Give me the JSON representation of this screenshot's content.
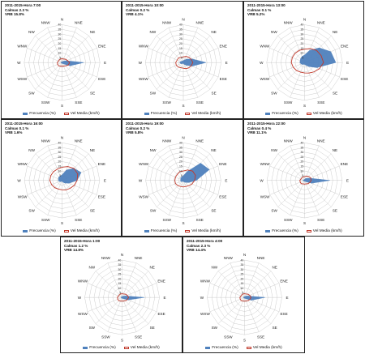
{
  "chart_data": [
    {
      "type": "radar",
      "title": "2011-2015-Hora 7:00",
      "calmas": "Calmas 2.3 %",
      "vrb": "VRB  15.8%",
      "categories": [
        "N",
        "NNE",
        "NE",
        "ENE",
        "E",
        "ESE",
        "SE",
        "SSE",
        "S",
        "SSW",
        "SW",
        "WSW",
        "W",
        "WNW",
        "NW",
        "NNW"
      ],
      "rlim": [
        0,
        40
      ],
      "ticks": [
        5,
        10,
        15,
        20,
        25,
        30,
        35,
        40
      ],
      "legend": [
        "Frecuencia (%)",
        "Vel Media (km/h)"
      ],
      "series": [
        {
          "name": "Frecuencia (%)",
          "values": [
            1,
            1,
            2,
            5,
            23,
            9,
            2,
            1,
            1,
            1,
            1,
            1,
            1,
            1,
            1,
            1
          ]
        },
        {
          "name": "Vel Media (km/h)",
          "values": [
            4,
            4,
            5,
            6,
            8,
            7,
            5,
            4,
            4,
            4,
            5,
            5,
            5,
            4,
            4,
            4
          ]
        }
      ]
    },
    {
      "type": "radar",
      "title": "2011-2015-Hora 10:00",
      "calmas": "Calmas 0.2 %",
      "vrb": "VRB  4.1%",
      "categories": [
        "N",
        "NNE",
        "NE",
        "ENE",
        "E",
        "ESE",
        "SE",
        "SSE",
        "S",
        "SSW",
        "SW",
        "WSW",
        "W",
        "WNW",
        "NW",
        "NNW"
      ],
      "rlim": [
        0,
        40
      ],
      "ticks": [
        5,
        10,
        15,
        20,
        25,
        30,
        35,
        40
      ],
      "legend": [
        "Frecuencia (%)",
        "Vel Media (km/h)"
      ],
      "series": [
        {
          "name": "Frecuencia (%)",
          "values": [
            2,
            3,
            5,
            10,
            24,
            10,
            4,
            2,
            1,
            1,
            2,
            3,
            4,
            3,
            2,
            2
          ]
        },
        {
          "name": "Vel Media (km/h)",
          "values": [
            6,
            7,
            8,
            9,
            10,
            9,
            8,
            7,
            6,
            6,
            7,
            8,
            8,
            7,
            7,
            6
          ]
        }
      ]
    },
    {
      "type": "radar",
      "title": "2011-2015-Hora 13:00",
      "calmas": "Calmas 0.1 %",
      "vrb": "VRB  5.2%",
      "categories": [
        "N",
        "NNE",
        "NE",
        "ENE",
        "E",
        "ESE",
        "SE",
        "SSE",
        "S",
        "SSW",
        "SW",
        "WSW",
        "W",
        "WNW",
        "NW",
        "NNW"
      ],
      "rlim": [
        0,
        40
      ],
      "ticks": [
        5,
        10,
        15,
        20,
        25,
        30,
        35,
        40
      ],
      "legend": [
        "Frecuencia (%)",
        "Vel Media (km/h)"
      ],
      "series": [
        {
          "name": "Frecuencia (%)",
          "values": [
            8,
            14,
            22,
            30,
            33,
            14,
            6,
            3,
            2,
            2,
            3,
            4,
            5,
            5,
            6,
            7
          ]
        },
        {
          "name": "Vel Media (km/h)",
          "values": [
            14,
            16,
            18,
            19,
            20,
            17,
            14,
            12,
            11,
            11,
            12,
            13,
            14,
            14,
            14,
            14
          ]
        }
      ]
    },
    {
      "type": "radar",
      "title": "2011-2015-Hora 16:00",
      "calmas": "Calmas 0.1 %",
      "vrb": "VRB 1.6%",
      "categories": [
        "N",
        "NNE",
        "NE",
        "ENE",
        "E",
        "ESE",
        "SE",
        "SSE",
        "S",
        "SSW",
        "SW",
        "WSW",
        "W",
        "WNW",
        "NW",
        "NNW"
      ],
      "rlim": [
        0,
        40
      ],
      "ticks": [
        5,
        10,
        15,
        20,
        25,
        30,
        35,
        40
      ],
      "legend": [
        "Frecuencia (%)",
        "Vel Media (km/h)"
      ],
      "series": [
        {
          "name": "Frecuencia (%)",
          "values": [
            6,
            12,
            18,
            22,
            16,
            8,
            4,
            2,
            1,
            1,
            2,
            3,
            4,
            4,
            5,
            5
          ]
        },
        {
          "name": "Vel Media (km/h)",
          "values": [
            14,
            16,
            18,
            18,
            16,
            14,
            12,
            11,
            10,
            10,
            11,
            12,
            13,
            13,
            13,
            13
          ]
        }
      ]
    },
    {
      "type": "radar",
      "title": "2011-2015-Hora 19:00",
      "calmas": "Calmas 0.2 %",
      "vrb": "VRB  5.8%",
      "categories": [
        "N",
        "NNE",
        "NE",
        "ENE",
        "E",
        "ESE",
        "SE",
        "SSE",
        "S",
        "SSW",
        "SW",
        "WSW",
        "W",
        "WNW",
        "NW",
        "NNW"
      ],
      "rlim": [
        0,
        40
      ],
      "ticks": [
        5,
        10,
        15,
        20,
        25,
        30,
        35,
        40
      ],
      "legend": [
        "Frecuencia (%)",
        "Vel Media (km/h)"
      ],
      "series": [
        {
          "name": "Frecuencia (%)",
          "values": [
            5,
            10,
            26,
            30,
            14,
            6,
            3,
            2,
            1,
            1,
            2,
            3,
            3,
            3,
            4,
            4
          ]
        },
        {
          "name": "Vel Media (km/h)",
          "values": [
            10,
            12,
            14,
            14,
            12,
            10,
            8,
            7,
            7,
            7,
            8,
            9,
            9,
            9,
            9,
            10
          ]
        }
      ]
    },
    {
      "type": "radar",
      "title": "2011-2015-Hora 22:00",
      "calmas": "Calmas 0.4 %",
      "vrb": "VRB 11.1%",
      "categories": [
        "N",
        "NNE",
        "NE",
        "ENE",
        "E",
        "ESE",
        "SE",
        "SSE",
        "S",
        "SSW",
        "SW",
        "WSW",
        "W",
        "WNW",
        "NW",
        "NNW"
      ],
      "rlim": [
        0,
        40
      ],
      "ticks": [
        5,
        10,
        15,
        20,
        25,
        30,
        35,
        40
      ],
      "legend": [
        "Frecuencia (%)",
        "Vel Media (km/h)"
      ],
      "series": [
        {
          "name": "Frecuencia (%)",
          "values": [
            1,
            2,
            3,
            6,
            27,
            8,
            2,
            1,
            1,
            1,
            1,
            1,
            2,
            1,
            1,
            1
          ]
        },
        {
          "name": "Vel Media (km/h)",
          "values": [
            4,
            5,
            6,
            7,
            7,
            6,
            5,
            4,
            4,
            4,
            5,
            5,
            5,
            4,
            4,
            4
          ]
        }
      ]
    },
    {
      "type": "radar",
      "title": "2011-2015-Hora 1:00",
      "calmas": "Calmas 1.2 %",
      "vrb": "VRB  14.8%",
      "categories": [
        "N",
        "NNE",
        "NE",
        "ENE",
        "E",
        "ESE",
        "SE",
        "SSE",
        "S",
        "SSW",
        "SW",
        "WSW",
        "W",
        "WNW",
        "NW",
        "NNW"
      ],
      "rlim": [
        0,
        40
      ],
      "ticks": [
        5,
        10,
        15,
        20,
        25,
        30,
        35,
        40
      ],
      "legend": [
        "Frecuencia (%)",
        "Vel Media (km/h)"
      ],
      "series": [
        {
          "name": "Frecuencia (%)",
          "values": [
            1,
            1,
            2,
            4,
            24,
            7,
            2,
            1,
            1,
            1,
            1,
            1,
            1,
            1,
            1,
            1
          ]
        },
        {
          "name": "Vel Media (km/h)",
          "values": [
            4,
            4,
            5,
            6,
            7,
            6,
            5,
            4,
            4,
            4,
            5,
            5,
            5,
            4,
            4,
            4
          ]
        }
      ]
    },
    {
      "type": "radar",
      "title": "2011-2015-Hora 4:00",
      "calmas": "Calmas 2.3 %",
      "vrb": "VRB  14.4%",
      "categories": [
        "N",
        "NNE",
        "NE",
        "ENE",
        "E",
        "ESE",
        "SE",
        "SSE",
        "S",
        "SSW",
        "SW",
        "WSW",
        "W",
        "WNW",
        "NW",
        "NNW"
      ],
      "rlim": [
        0,
        40
      ],
      "ticks": [
        5,
        10,
        15,
        20,
        25,
        30,
        35,
        40
      ],
      "legend": [
        "Frecuencia (%)",
        "Vel Media (km/h)"
      ],
      "series": [
        {
          "name": "Frecuencia (%)",
          "values": [
            1,
            1,
            2,
            4,
            22,
            8,
            2,
            1,
            1,
            1,
            1,
            1,
            1,
            1,
            1,
            1
          ]
        },
        {
          "name": "Vel Media (km/h)",
          "values": [
            4,
            4,
            5,
            6,
            7,
            6,
            5,
            4,
            4,
            4,
            5,
            5,
            5,
            4,
            4,
            4
          ]
        }
      ]
    }
  ]
}
